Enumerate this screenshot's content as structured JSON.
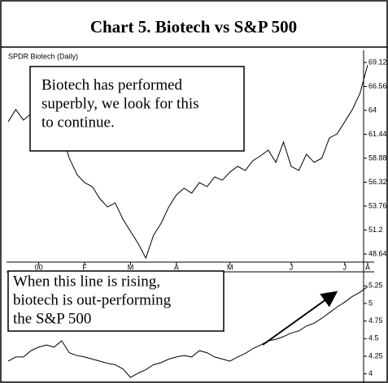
{
  "header": {
    "title": "Chart 5.  Biotech vs S&P 500"
  },
  "chart_data": [
    {
      "type": "line",
      "title": "SPDR Biotech (Daily)",
      "annotation": [
        "Biotech has performed",
        "superbly, we look for this",
        "to continue."
      ],
      "categories": [
        null,
        null,
        null,
        null,
        "00",
        null,
        null,
        null,
        null,
        null,
        "F",
        null,
        null,
        null,
        null,
        null,
        "M",
        null,
        null,
        null,
        null,
        null,
        "A",
        null,
        null,
        null,
        null,
        null,
        null,
        "M",
        null,
        null,
        null,
        null,
        null,
        null,
        null,
        "J",
        null,
        null,
        null,
        null,
        null,
        null,
        "J",
        null,
        null,
        "A"
      ],
      "series": [
        {
          "name": "SPDR Biotech",
          "color": "#000000",
          "values": [
            62.78,
            64.09,
            62.96,
            63.65,
            62.78,
            63.65,
            62.78,
            61.48,
            58.88,
            57.14,
            56.27,
            55.84,
            54.54,
            53.67,
            54.1,
            52.37,
            51.06,
            49.76,
            48.2,
            50.63,
            51.93,
            53.67,
            54.97,
            55.67,
            55.14,
            56.27,
            55.84,
            56.88,
            56.53,
            57.4,
            58.01,
            57.57,
            58.62,
            59.14,
            59.75,
            58.44,
            60.61,
            58.01,
            57.57,
            59.31,
            58.44,
            58.88,
            61.05,
            61.48,
            62.78,
            64.09,
            65.82,
            68.86
          ]
        }
      ],
      "ylim": [
        47.86,
        70.42
      ],
      "yticks": [
        48.64,
        51.2,
        53.76,
        56.32,
        58.88,
        61.44,
        64,
        66.56,
        69.12
      ]
    },
    {
      "type": "line",
      "annotation": [
        "When this line is rising,",
        "biotech is out-performing",
        "the S&P 500"
      ],
      "series": [
        {
          "name": "Biotech / S&P 500",
          "color": "#000000",
          "values": [
            4.18,
            4.24,
            4.24,
            4.33,
            4.38,
            4.41,
            4.38,
            4.47,
            4.3,
            4.26,
            4.24,
            4.21,
            4.18,
            4.15,
            4.13,
            4.07,
            3.95,
            4.01,
            4.06,
            4.13,
            4.16,
            4.21,
            4.24,
            4.26,
            4.24,
            4.33,
            4.3,
            4.24,
            4.21,
            4.18,
            4.24,
            4.29,
            4.36,
            4.41,
            4.47,
            4.49,
            4.53,
            4.58,
            4.61,
            4.68,
            4.72,
            4.79,
            4.87,
            4.95,
            5.02,
            5.1,
            5.16,
            5.24
          ]
        }
      ],
      "ylim": [
        3.87,
        5.45
      ],
      "yticks": [
        4,
        4.25,
        4.5,
        4.75,
        5,
        5.25
      ]
    }
  ]
}
